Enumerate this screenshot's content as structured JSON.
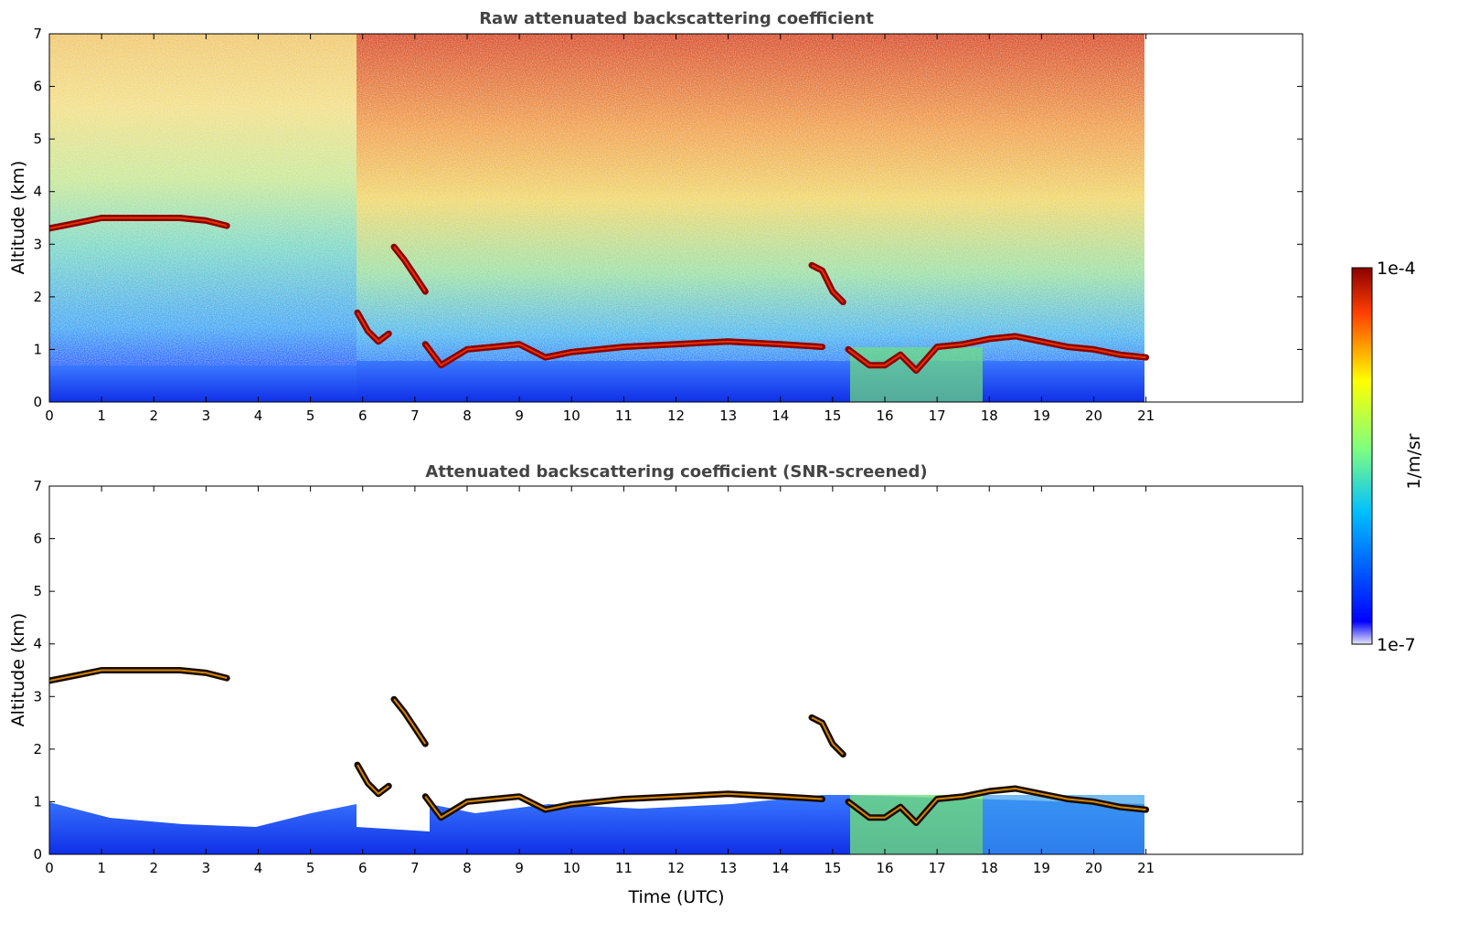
{
  "chart_data": [
    {
      "type": "heatmap",
      "title": "Raw attenuated backscattering coefficient",
      "xlabel": "",
      "ylabel": "Altitude (km)",
      "xlim": [
        0,
        24
      ],
      "ylim": [
        0,
        7
      ],
      "x_ticks": [
        "0",
        "1",
        "2",
        "3",
        "4",
        "5",
        "6",
        "7",
        "8",
        "9",
        "10",
        "11",
        "12",
        "13",
        "14",
        "15",
        "16",
        "17",
        "18",
        "19",
        "20",
        "21"
      ],
      "y_ticks": [
        "0",
        "1",
        "2",
        "3",
        "4",
        "5",
        "6",
        "7"
      ],
      "data_time_range": [
        0,
        21
      ],
      "layers": [
        {
          "kind": "cloud",
          "t": [
            0,
            0.5,
            1,
            1.5,
            2,
            2.5,
            3,
            3.4
          ],
          "z": [
            3.3,
            3.4,
            3.5,
            3.5,
            3.5,
            3.5,
            3.45,
            3.35
          ]
        },
        {
          "kind": "cloud",
          "t": [
            6.6,
            6.8,
            7.0,
            7.2
          ],
          "z": [
            2.95,
            2.7,
            2.4,
            2.1
          ]
        },
        {
          "kind": "cloud",
          "t": [
            5.9,
            6.1,
            6.3,
            6.5
          ],
          "z": [
            1.7,
            1.35,
            1.15,
            1.3
          ]
        },
        {
          "kind": "cloud",
          "t": [
            7.2,
            7.5,
            8,
            8.5,
            9,
            9.5,
            10,
            11,
            12,
            13,
            14,
            14.8
          ],
          "z": [
            1.1,
            0.7,
            1.0,
            1.05,
            1.1,
            0.85,
            0.95,
            1.05,
            1.1,
            1.15,
            1.1,
            1.05
          ]
        },
        {
          "kind": "cloud",
          "t": [
            14.6,
            14.8,
            15.0,
            15.2
          ],
          "z": [
            2.6,
            2.5,
            2.1,
            1.9
          ]
        },
        {
          "kind": "cloud",
          "t": [
            15.3,
            15.7,
            16,
            16.3,
            16.6,
            17,
            17.5,
            18,
            18.5,
            19,
            19.5,
            20,
            20.5,
            21
          ],
          "z": [
            1.0,
            0.7,
            0.7,
            0.9,
            0.6,
            1.05,
            1.1,
            1.2,
            1.25,
            1.15,
            1.05,
            1.0,
            0.9,
            0.85
          ]
        }
      ]
    },
    {
      "type": "heatmap",
      "title": "Attenuated backscattering coefficient (SNR-screened)",
      "xlabel": "Time (UTC)",
      "ylabel": "Altitude (km)",
      "xlim": [
        0,
        24
      ],
      "ylim": [
        0,
        7
      ],
      "x_ticks": [
        "0",
        "1",
        "2",
        "3",
        "4",
        "5",
        "6",
        "7",
        "8",
        "9",
        "10",
        "11",
        "12",
        "13",
        "14",
        "15",
        "16",
        "17",
        "18",
        "19",
        "20",
        "21"
      ],
      "y_ticks": [
        "0",
        "1",
        "2",
        "3",
        "4",
        "5",
        "6",
        "7"
      ],
      "data_time_range": [
        0,
        21
      ]
    }
  ],
  "colorbar": {
    "label": "1/m/sr",
    "max_label": "1e-4",
    "min_label": "1e-7",
    "scale": "log",
    "range": [
      1e-07,
      0.0001
    ],
    "colormap": "jet",
    "colors": [
      "#e6e6f5",
      "#0000ff",
      "#00bfff",
      "#7fff7f",
      "#ffff00",
      "#ff3f00",
      "#8b0000"
    ]
  }
}
